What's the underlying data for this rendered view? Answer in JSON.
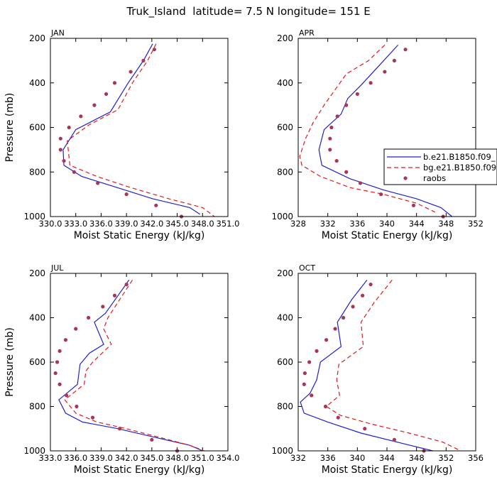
{
  "figure_title": "Truk_Island  latitude= 7.5 N longitude= 151 E",
  "colors": {
    "model1": "#1f1fd6",
    "model2": "#e0191e",
    "raobs": "#a8355a"
  },
  "legend": {
    "entries": [
      {
        "label": "b.e21.B1850.f09_",
        "style": "solid"
      },
      {
        "label": "bg.e21.B1850.f09",
        "style": "dashed"
      },
      {
        "label": "raobs",
        "style": "dots"
      }
    ]
  },
  "chart_data": [
    {
      "type": "line",
      "panel": "JAN",
      "xlabel": "Moist Static Energy (kJ/kg)",
      "ylabel": "Pressure (mb)",
      "xlim": [
        330.0,
        351.0
      ],
      "ylim": [
        200,
        1000
      ],
      "xticks": [
        330.0,
        333.0,
        336.0,
        339.0,
        342.0,
        345.0,
        348.0,
        351.0
      ],
      "xtick_labels": [
        "330.0",
        "333.0",
        "336.0",
        "339.0",
        "342.0",
        "345.0",
        "348.0",
        "351.0"
      ],
      "yticks": [
        200,
        400,
        600,
        800,
        1000
      ],
      "ytick_labels": [
        "200",
        "400",
        "600",
        "800",
        "1000"
      ],
      "series": [
        {
          "name": "b.e21.B1850.f09_",
          "style": "solid",
          "points": [
            [
              342.1,
              225
            ],
            [
              341.0,
              300
            ],
            [
              339.2,
              400
            ],
            [
              337.1,
              530
            ],
            [
              333.0,
              610
            ],
            [
              331.5,
              700
            ],
            [
              331.6,
              770
            ],
            [
              333.7,
              820
            ],
            [
              337.9,
              870
            ],
            [
              342.1,
              920
            ],
            [
              346.5,
              960
            ],
            [
              347.7,
              990
            ]
          ]
        },
        {
          "name": "bg.e21.B1850.f09",
          "style": "dashed",
          "points": [
            [
              342.5,
              225
            ],
            [
              341.5,
              300
            ],
            [
              339.7,
              400
            ],
            [
              338.0,
              520
            ],
            [
              334.5,
              590
            ],
            [
              332.0,
              660
            ],
            [
              332.3,
              770
            ],
            [
              335.5,
              820
            ],
            [
              339.5,
              870
            ],
            [
              344.0,
              920
            ],
            [
              348.0,
              960
            ],
            [
              349.4,
              1000
            ]
          ]
        },
        {
          "name": "raobs",
          "style": "dots",
          "points": [
            [
              342.3,
              250
            ],
            [
              341.0,
              300
            ],
            [
              339.5,
              350
            ],
            [
              337.6,
              400
            ],
            [
              336.6,
              450
            ],
            [
              335.2,
              500
            ],
            [
              333.6,
              550
            ],
            [
              332.2,
              600
            ],
            [
              331.2,
              650
            ],
            [
              331.2,
              700
            ],
            [
              331.6,
              750
            ],
            [
              332.8,
              800
            ],
            [
              335.6,
              850
            ],
            [
              339.0,
              900
            ],
            [
              342.5,
              950
            ],
            [
              345.5,
              1000
            ]
          ]
        }
      ]
    },
    {
      "type": "line",
      "panel": "APR",
      "xlabel": "Moist Static Energy (kJ/kg)",
      "ylabel": "Pressure (mb)",
      "xlim": [
        328,
        352
      ],
      "ylim": [
        200,
        1000
      ],
      "xticks": [
        328,
        332,
        336,
        340,
        344,
        348,
        352
      ],
      "xtick_labels": [
        "328",
        "332",
        "336",
        "340",
        "344",
        "348",
        "352"
      ],
      "yticks": [
        200,
        400,
        600,
        800,
        1000
      ],
      "ytick_labels": [
        "200",
        "400",
        "600",
        "800",
        "1000"
      ],
      "series": [
        {
          "name": "b.e21.B1850.f09_",
          "style": "solid",
          "points": [
            [
              341.5,
              230
            ],
            [
              339.0,
              320
            ],
            [
              336.5,
              410
            ],
            [
              334.7,
              470
            ],
            [
              333.8,
              540
            ],
            [
              331.5,
              610
            ],
            [
              330.8,
              700
            ],
            [
              331.2,
              770
            ],
            [
              335.0,
              830
            ],
            [
              339.5,
              880
            ],
            [
              344.0,
              920
            ],
            [
              347.3,
              960
            ],
            [
              348.8,
              1000
            ]
          ]
        },
        {
          "name": "bg.e21.B1850.f09",
          "style": "dashed",
          "points": [
            [
              339.7,
              230
            ],
            [
              337.5,
              300
            ],
            [
              334.5,
              360
            ],
            [
              333.0,
              430
            ],
            [
              331.5,
              500
            ],
            [
              330.0,
              580
            ],
            [
              329.0,
              650
            ],
            [
              328.2,
              730
            ],
            [
              328.5,
              770
            ],
            [
              331.0,
              820
            ],
            [
              335.0,
              870
            ],
            [
              339.5,
              900
            ],
            [
              344.0,
              940
            ],
            [
              346.5,
              980
            ]
          ]
        },
        {
          "name": "raobs",
          "style": "dots",
          "points": [
            [
              342.5,
              250
            ],
            [
              341.0,
              300
            ],
            [
              339.7,
              350
            ],
            [
              337.8,
              400
            ],
            [
              336.0,
              450
            ],
            [
              334.5,
              500
            ],
            [
              333.3,
              550
            ],
            [
              332.5,
              600
            ],
            [
              332.3,
              650
            ],
            [
              332.3,
              700
            ],
            [
              333.2,
              750
            ],
            [
              334.5,
              800
            ],
            [
              336.4,
              850
            ],
            [
              339.2,
              900
            ],
            [
              343.6,
              950
            ],
            [
              347.6,
              1000
            ]
          ]
        }
      ]
    },
    {
      "type": "line",
      "panel": "JUL",
      "xlabel": "Moist Static Energy (kJ/kg)",
      "ylabel": "Pressure (mb)",
      "xlim": [
        333.0,
        354.0
      ],
      "ylim": [
        200,
        1000
      ],
      "xticks": [
        333.0,
        336.0,
        339.0,
        342.0,
        345.0,
        348.0,
        351.0,
        354.0
      ],
      "xtick_labels": [
        "333.0",
        "336.0",
        "339.0",
        "342.0",
        "345.0",
        "348.0",
        "351.0",
        "354.0"
      ],
      "yticks": [
        200,
        400,
        600,
        800,
        1000
      ],
      "ytick_labels": [
        "200",
        "400",
        "600",
        "800",
        "1000"
      ],
      "series": [
        {
          "name": "b.e21.B1850.f09_",
          "style": "solid",
          "points": [
            [
              342.3,
              230
            ],
            [
              341.0,
              300
            ],
            [
              339.5,
              380
            ],
            [
              338.2,
              420
            ],
            [
              339.3,
              520
            ],
            [
              337.6,
              560
            ],
            [
              336.5,
              610
            ],
            [
              336.2,
              700
            ],
            [
              334.0,
              770
            ],
            [
              334.8,
              830
            ],
            [
              336.8,
              870
            ],
            [
              341.0,
              900
            ],
            [
              345.5,
              940
            ],
            [
              349.5,
              975
            ],
            [
              351.0,
              1000
            ]
          ]
        },
        {
          "name": "bg.e21.B1850.f09",
          "style": "dashed",
          "points": [
            [
              342.7,
              230
            ],
            [
              341.5,
              300
            ],
            [
              339.8,
              400
            ],
            [
              339.3,
              450
            ],
            [
              340.2,
              520
            ],
            [
              338.0,
              600
            ],
            [
              337.2,
              640
            ],
            [
              337.0,
              700
            ],
            [
              334.7,
              770
            ],
            [
              336.0,
              830
            ],
            [
              338.5,
              870
            ],
            [
              342.0,
              900
            ],
            [
              346.0,
              940
            ],
            [
              349.5,
              975
            ],
            [
              351.2,
              1000
            ]
          ]
        },
        {
          "name": "raobs",
          "style": "dots",
          "points": [
            [
              342.0,
              250
            ],
            [
              340.6,
              300
            ],
            [
              339.2,
              350
            ],
            [
              337.5,
              400
            ],
            [
              336.0,
              450
            ],
            [
              334.8,
              500
            ],
            [
              334.1,
              550
            ],
            [
              333.8,
              600
            ],
            [
              333.6,
              650
            ],
            [
              334.1,
              700
            ],
            [
              334.9,
              750
            ],
            [
              336.1,
              800
            ],
            [
              338.0,
              850
            ],
            [
              341.2,
              900
            ],
            [
              345.0,
              950
            ],
            [
              348.0,
              1000
            ]
          ]
        }
      ]
    },
    {
      "type": "line",
      "panel": "OCT",
      "xlabel": "Moist Static Energy (kJ/kg)",
      "ylabel": "Pressure (mb)",
      "xlim": [
        332,
        356
      ],
      "ylim": [
        200,
        1000
      ],
      "xticks": [
        332,
        336,
        340,
        344,
        348,
        352,
        356
      ],
      "xtick_labels": [
        "332",
        "336",
        "340",
        "344",
        "348",
        "352",
        "356"
      ],
      "yticks": [
        200,
        400,
        600,
        800,
        1000
      ],
      "ytick_labels": [
        "200",
        "400",
        "600",
        "800",
        "1000"
      ],
      "series": [
        {
          "name": "b.e21.B1850.f09_",
          "style": "solid",
          "points": [
            [
              341.3,
              230
            ],
            [
              339.2,
              320
            ],
            [
              337.3,
              420
            ],
            [
              337.8,
              530
            ],
            [
              335.0,
              600
            ],
            [
              334.5,
              680
            ],
            [
              333.6,
              740
            ],
            [
              332.3,
              780
            ],
            [
              332.8,
              830
            ],
            [
              336.0,
              870
            ],
            [
              340.5,
              920
            ],
            [
              346.5,
              970
            ],
            [
              350.2,
              1000
            ]
          ]
        },
        {
          "name": "bg.e21.B1850.f09",
          "style": "dashed",
          "points": [
            [
              344.7,
              230
            ],
            [
              342.3,
              330
            ],
            [
              340.5,
              420
            ],
            [
              340.8,
              530
            ],
            [
              337.5,
              610
            ],
            [
              337.2,
              680
            ],
            [
              337.6,
              750
            ],
            [
              335.8,
              800
            ],
            [
              337.7,
              840
            ],
            [
              342.0,
              880
            ],
            [
              347.0,
              920
            ],
            [
              351.5,
              960
            ],
            [
              354.0,
              1000
            ]
          ]
        },
        {
          "name": "raobs",
          "style": "dots",
          "points": [
            [
              341.8,
              250
            ],
            [
              340.7,
              300
            ],
            [
              339.4,
              350
            ],
            [
              338.1,
              400
            ],
            [
              337.0,
              450
            ],
            [
              335.8,
              500
            ],
            [
              334.5,
              550
            ],
            [
              333.5,
              600
            ],
            [
              332.9,
              650
            ],
            [
              332.8,
              700
            ],
            [
              333.8,
              750
            ],
            [
              335.7,
              800
            ],
            [
              337.4,
              850
            ],
            [
              341.0,
              900
            ],
            [
              345.0,
              950
            ],
            [
              349.0,
              1000
            ]
          ]
        }
      ]
    }
  ]
}
